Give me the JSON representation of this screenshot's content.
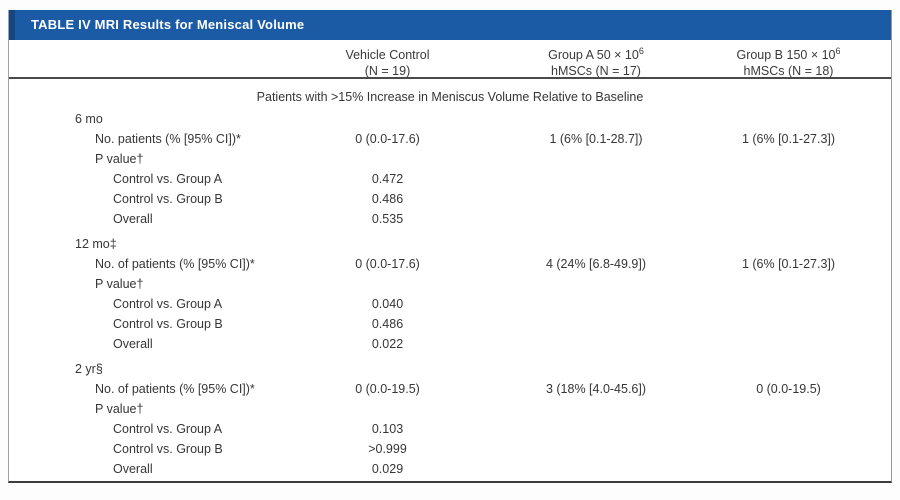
{
  "table": {
    "title": "TABLE IV MRI Results for Meniscal Volume",
    "columns": [
      {
        "key": "vehicle-control",
        "line1": "Vehicle Control",
        "sup": "",
        "line2": "(N = 19)"
      },
      {
        "key": "group-a",
        "line1": "Group A 50 × 10",
        "sup": "6",
        "line2": "hMSCs (N = 17)"
      },
      {
        "key": "group-b",
        "line1": "Group B 150 × 10",
        "sup": "6",
        "line2": "hMSCs (N = 18)"
      }
    ],
    "section_header": "Patients with >15% Increase in Meniscus Volume Relative to Baseline",
    "rows": [
      {
        "label": "6 mo",
        "indent": 1,
        "spaced": false,
        "values": [
          "",
          "",
          ""
        ]
      },
      {
        "label": "No. patients (% [95% CI])*",
        "indent": 2,
        "spaced": false,
        "values": [
          "0 (0.0-17.6)",
          "1 (6% [0.1-28.7])",
          "1 (6% [0.1-27.3])"
        ]
      },
      {
        "label": "P value†",
        "indent": 2,
        "spaced": false,
        "values": [
          "",
          "",
          ""
        ]
      },
      {
        "label": "Control vs. Group A",
        "indent": 3,
        "spaced": false,
        "values": [
          "0.472",
          "",
          ""
        ]
      },
      {
        "label": "Control vs. Group B",
        "indent": 3,
        "spaced": false,
        "values": [
          "0.486",
          "",
          ""
        ]
      },
      {
        "label": "Overall",
        "indent": 3,
        "spaced": false,
        "values": [
          "0.535",
          "",
          ""
        ]
      },
      {
        "label": "12 mo‡",
        "indent": 1,
        "spaced": true,
        "values": [
          "",
          "",
          ""
        ]
      },
      {
        "label": "No. of patients (% [95% CI])*",
        "indent": 2,
        "spaced": false,
        "values": [
          "0 (0.0-17.6)",
          "4 (24% [6.8-49.9])",
          "1 (6% [0.1-27.3])"
        ]
      },
      {
        "label": "P value†",
        "indent": 2,
        "spaced": false,
        "values": [
          "",
          "",
          ""
        ]
      },
      {
        "label": "Control vs. Group A",
        "indent": 3,
        "spaced": false,
        "values": [
          "0.040",
          "",
          ""
        ]
      },
      {
        "label": "Control vs. Group B",
        "indent": 3,
        "spaced": false,
        "values": [
          "0.486",
          "",
          ""
        ]
      },
      {
        "label": "Overall",
        "indent": 3,
        "spaced": false,
        "values": [
          "0.022",
          "",
          ""
        ]
      },
      {
        "label": "2 yr§",
        "indent": 1,
        "spaced": true,
        "values": [
          "",
          "",
          ""
        ]
      },
      {
        "label": "No. of patients (% [95% CI])*",
        "indent": 2,
        "spaced": false,
        "values": [
          "0 (0.0-19.5)",
          "3 (18% [4.0-45.6])",
          "0 (0.0-19.5)"
        ]
      },
      {
        "label": "P value†",
        "indent": 2,
        "spaced": false,
        "values": [
          "",
          "",
          ""
        ]
      },
      {
        "label": "Control vs. Group A",
        "indent": 3,
        "spaced": false,
        "values": [
          "0.103",
          "",
          ""
        ]
      },
      {
        "label": "Control vs. Group B",
        "indent": 3,
        "spaced": false,
        "values": [
          ">0.999",
          "",
          ""
        ]
      },
      {
        "label": "Overall",
        "indent": 3,
        "spaced": false,
        "values": [
          "0.029",
          "",
          ""
        ]
      }
    ]
  },
  "colors": {
    "header_bar_blue": "#1b5aa5",
    "header_bar_edge_blue": "#16477f",
    "text": "#363636",
    "rule_dark": "#3c3c3c",
    "rule_light": "#9a9a9a",
    "title_text": "#ffffff"
  }
}
